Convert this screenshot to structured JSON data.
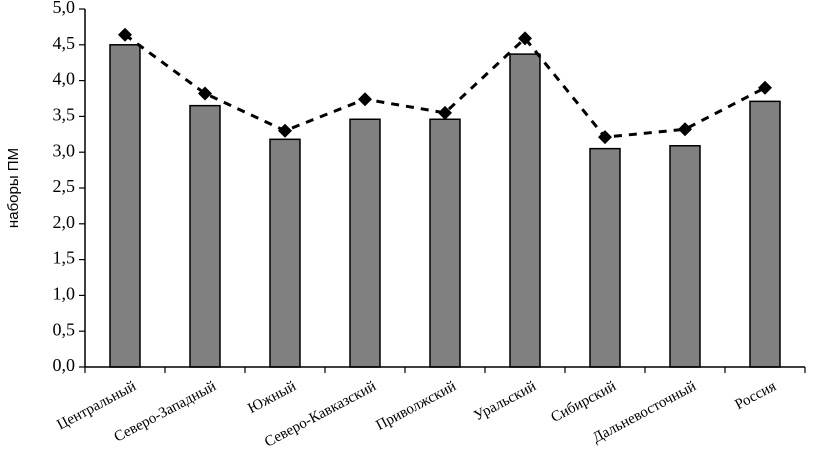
{
  "chart_data": {
    "type": "bar",
    "categories": [
      "Центральный",
      "Северо-Западный",
      "Южный",
      "Северо-Кавказский",
      "Приволжский",
      "Уральский",
      "Сибирский",
      "Дальневосточный",
      "Россия"
    ],
    "series": [
      {
        "type": "bar",
        "values": [
          4.5,
          3.65,
          3.18,
          3.46,
          3.46,
          4.37,
          3.05,
          3.09,
          3.71
        ],
        "color": "#808080"
      },
      {
        "type": "line",
        "values": [
          4.64,
          3.82,
          3.3,
          3.74,
          3.55,
          4.59,
          3.21,
          3.32,
          3.9
        ],
        "color": "#000000",
        "marker": "diamond",
        "line_style": "dashed"
      }
    ],
    "ylabel": "наборы ПМ",
    "xlabel": "",
    "ylim": [
      0,
      5
    ],
    "yticks": [
      "0,0",
      "0,5",
      "1,0",
      "1,5",
      "2,0",
      "2,5",
      "3,0",
      "3,5",
      "4,0",
      "4,5",
      "5,0"
    ],
    "grid": false,
    "legend": "none"
  }
}
